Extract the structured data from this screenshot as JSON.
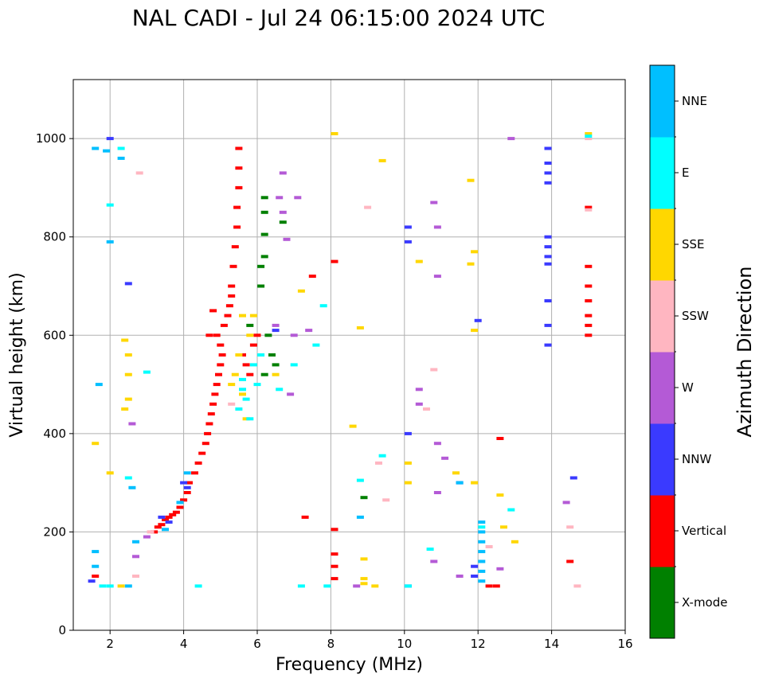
{
  "chart_data": {
    "type": "scatter",
    "title": "NAL CADI - Jul 24 06:15:00 2024 UTC",
    "xlabel": "Frequency (MHz)",
    "ylabel": "Virtual height (km)",
    "xlim": [
      1,
      16
    ],
    "ylim": [
      0,
      1120
    ],
    "xticks": [
      2,
      4,
      6,
      8,
      10,
      12,
      14,
      16
    ],
    "yticks": [
      0,
      200,
      400,
      600,
      800,
      1000
    ],
    "grid": true,
    "colorbar": {
      "title": "Azimuth Direction",
      "position": "right",
      "categories": [
        {
          "name": "X-mode",
          "color": "#008000"
        },
        {
          "name": "Vertical",
          "color": "#ff0000"
        },
        {
          "name": "NNW",
          "color": "#3a3aff"
        },
        {
          "name": "W",
          "color": "#b45ad6"
        },
        {
          "name": "SSW",
          "color": "#ffb6c1"
        },
        {
          "name": "SSE",
          "color": "#ffd700"
        },
        {
          "name": "E",
          "color": "#00ffff"
        },
        {
          "name": "NNE",
          "color": "#00bfff"
        }
      ]
    },
    "series": [
      {
        "name": "X-mode",
        "points": [
          [
            6.2,
            880
          ],
          [
            6.2,
            850
          ],
          [
            6.2,
            805
          ],
          [
            6.2,
            760
          ],
          [
            6.1,
            740
          ],
          [
            6.1,
            700
          ],
          [
            6.3,
            600
          ],
          [
            6.4,
            560
          ],
          [
            6.5,
            540
          ],
          [
            6.7,
            830
          ],
          [
            5.8,
            620
          ],
          [
            6.2,
            520
          ],
          [
            8.9,
            270
          ]
        ]
      },
      {
        "name": "Vertical",
        "points": [
          [
            3.2,
            200
          ],
          [
            3.3,
            210
          ],
          [
            3.4,
            215
          ],
          [
            3.5,
            225
          ],
          [
            3.6,
            230
          ],
          [
            3.7,
            235
          ],
          [
            3.8,
            240
          ],
          [
            3.9,
            250
          ],
          [
            4.0,
            265
          ],
          [
            4.1,
            280
          ],
          [
            4.15,
            300
          ],
          [
            4.3,
            320
          ],
          [
            4.4,
            340
          ],
          [
            4.5,
            360
          ],
          [
            4.6,
            380
          ],
          [
            4.65,
            400
          ],
          [
            4.7,
            420
          ],
          [
            4.75,
            440
          ],
          [
            4.8,
            460
          ],
          [
            4.85,
            480
          ],
          [
            4.9,
            500
          ],
          [
            4.95,
            520
          ],
          [
            5.0,
            540
          ],
          [
            5.05,
            560
          ],
          [
            5.0,
            580
          ],
          [
            4.9,
            600
          ],
          [
            5.1,
            620
          ],
          [
            5.2,
            640
          ],
          [
            5.25,
            660
          ],
          [
            5.3,
            680
          ],
          [
            5.3,
            700
          ],
          [
            5.35,
            740
          ],
          [
            5.4,
            780
          ],
          [
            5.45,
            820
          ],
          [
            5.45,
            860
          ],
          [
            5.5,
            900
          ],
          [
            5.5,
            940
          ],
          [
            5.5,
            980
          ],
          [
            4.8,
            650
          ],
          [
            4.7,
            600
          ],
          [
            5.6,
            560
          ],
          [
            5.7,
            540
          ],
          [
            5.8,
            520
          ],
          [
            5.9,
            580
          ],
          [
            6.0,
            600
          ],
          [
            7.5,
            720
          ],
          [
            8.1,
            750
          ],
          [
            8.1,
            205
          ],
          [
            8.1,
            155
          ],
          [
            8.1,
            130
          ],
          [
            8.1,
            105
          ],
          [
            12.3,
            90
          ],
          [
            12.5,
            90
          ],
          [
            12.6,
            390
          ],
          [
            14.5,
            140
          ],
          [
            15.0,
            860
          ],
          [
            15.0,
            740
          ],
          [
            15.0,
            700
          ],
          [
            15.0,
            670
          ],
          [
            15.0,
            640
          ],
          [
            15.0,
            620
          ],
          [
            15.0,
            600
          ],
          [
            1.6,
            110
          ],
          [
            7.3,
            230
          ]
        ]
      },
      {
        "name": "NNW",
        "points": [
          [
            13.9,
            980
          ],
          [
            13.9,
            950
          ],
          [
            13.9,
            930
          ],
          [
            13.9,
            910
          ],
          [
            13.9,
            800
          ],
          [
            13.9,
            780
          ],
          [
            13.9,
            760
          ],
          [
            13.9,
            745
          ],
          [
            13.9,
            670
          ],
          [
            13.9,
            620
          ],
          [
            13.9,
            580
          ],
          [
            10.1,
            820
          ],
          [
            10.1,
            790
          ],
          [
            10.1,
            400
          ],
          [
            10.1,
            90
          ],
          [
            12.0,
            630
          ],
          [
            11.9,
            110
          ],
          [
            11.9,
            130
          ],
          [
            2.0,
            1000
          ],
          [
            2.5,
            705
          ],
          [
            3.4,
            230
          ],
          [
            3.6,
            220
          ],
          [
            4.0,
            300
          ],
          [
            4.1,
            290
          ],
          [
            1.5,
            100
          ],
          [
            6.5,
            610
          ],
          [
            14.6,
            310
          ],
          [
            11.5,
            300
          ]
        ]
      },
      {
        "name": "W",
        "points": [
          [
            6.7,
            930
          ],
          [
            6.6,
            880
          ],
          [
            6.7,
            850
          ],
          [
            6.8,
            795
          ],
          [
            7.1,
            880
          ],
          [
            7.0,
            600
          ],
          [
            6.5,
            620
          ],
          [
            7.4,
            610
          ],
          [
            10.8,
            870
          ],
          [
            10.9,
            820
          ],
          [
            10.9,
            720
          ],
          [
            10.4,
            490
          ],
          [
            10.4,
            460
          ],
          [
            10.9,
            380
          ],
          [
            11.1,
            350
          ],
          [
            10.9,
            280
          ],
          [
            10.8,
            140
          ],
          [
            11.5,
            110
          ],
          [
            12.6,
            125
          ],
          [
            12.9,
            1000
          ],
          [
            14.4,
            260
          ],
          [
            8.7,
            90
          ],
          [
            3.0,
            190
          ],
          [
            2.7,
            150
          ],
          [
            2.6,
            420
          ],
          [
            6.9,
            480
          ]
        ]
      },
      {
        "name": "SSW",
        "points": [
          [
            2.8,
            930
          ],
          [
            2.7,
            110
          ],
          [
            9.0,
            860
          ],
          [
            9.5,
            265
          ],
          [
            10.6,
            450
          ],
          [
            10.8,
            530
          ],
          [
            12.3,
            170
          ],
          [
            14.5,
            210
          ],
          [
            14.7,
            90
          ],
          [
            15.0,
            1000
          ],
          [
            15.0,
            855
          ],
          [
            9.3,
            340
          ],
          [
            3.1,
            200
          ],
          [
            5.3,
            460
          ]
        ]
      },
      {
        "name": "SSE",
        "points": [
          [
            8.1,
            1010
          ],
          [
            9.4,
            955
          ],
          [
            11.8,
            915
          ],
          [
            11.9,
            770
          ],
          [
            11.8,
            745
          ],
          [
            11.9,
            610
          ],
          [
            8.8,
            615
          ],
          [
            8.6,
            415
          ],
          [
            8.9,
            145
          ],
          [
            8.9,
            105
          ],
          [
            8.9,
            95
          ],
          [
            9.2,
            90
          ],
          [
            12.6,
            275
          ],
          [
            12.7,
            210
          ],
          [
            13.0,
            180
          ],
          [
            11.9,
            300
          ],
          [
            11.4,
            320
          ],
          [
            10.1,
            300
          ],
          [
            10.1,
            340
          ],
          [
            10.4,
            750
          ],
          [
            2.4,
            450
          ],
          [
            2.5,
            470
          ],
          [
            2.5,
            520
          ],
          [
            2.5,
            560
          ],
          [
            2.4,
            590
          ],
          [
            2.3,
            90
          ],
          [
            5.6,
            640
          ],
          [
            5.8,
            600
          ],
          [
            5.5,
            560
          ],
          [
            5.4,
            520
          ],
          [
            5.6,
            480
          ],
          [
            5.7,
            430
          ],
          [
            5.3,
            500
          ],
          [
            5.9,
            640
          ],
          [
            6.5,
            520
          ],
          [
            7.2,
            690
          ],
          [
            15.0,
            1010
          ],
          [
            1.6,
            380
          ],
          [
            2.0,
            320
          ]
        ]
      },
      {
        "name": "E",
        "points": [
          [
            5.6,
            490
          ],
          [
            5.7,
            470
          ],
          [
            5.5,
            450
          ],
          [
            5.8,
            430
          ],
          [
            5.6,
            510
          ],
          [
            5.9,
            540
          ],
          [
            6.0,
            500
          ],
          [
            6.1,
            560
          ],
          [
            6.6,
            490
          ],
          [
            7.0,
            540
          ],
          [
            7.6,
            580
          ],
          [
            7.8,
            660
          ],
          [
            8.8,
            305
          ],
          [
            9.4,
            355
          ],
          [
            12.9,
            245
          ],
          [
            12.1,
            210
          ],
          [
            4.4,
            90
          ],
          [
            7.2,
            90
          ],
          [
            7.9,
            90
          ],
          [
            2.5,
            310
          ],
          [
            2.0,
            90
          ],
          [
            1.8,
            90
          ],
          [
            3.0,
            525
          ],
          [
            2.3,
            980
          ],
          [
            2.0,
            865
          ],
          [
            15.0,
            1005
          ],
          [
            10.1,
            90
          ],
          [
            10.7,
            165
          ]
        ]
      },
      {
        "name": "NNE",
        "points": [
          [
            1.6,
            980
          ],
          [
            1.9,
            975
          ],
          [
            2.3,
            960
          ],
          [
            2.0,
            790
          ],
          [
            1.7,
            500
          ],
          [
            1.6,
            160
          ],
          [
            1.6,
            130
          ],
          [
            2.5,
            90
          ],
          [
            2.6,
            290
          ],
          [
            2.7,
            180
          ],
          [
            3.5,
            205
          ],
          [
            3.9,
            260
          ],
          [
            4.1,
            320
          ],
          [
            12.1,
            220
          ],
          [
            12.1,
            200
          ],
          [
            12.1,
            180
          ],
          [
            12.1,
            160
          ],
          [
            12.1,
            140
          ],
          [
            12.1,
            120
          ],
          [
            12.1,
            100
          ],
          [
            11.5,
            300
          ],
          [
            8.8,
            230
          ]
        ]
      }
    ]
  }
}
